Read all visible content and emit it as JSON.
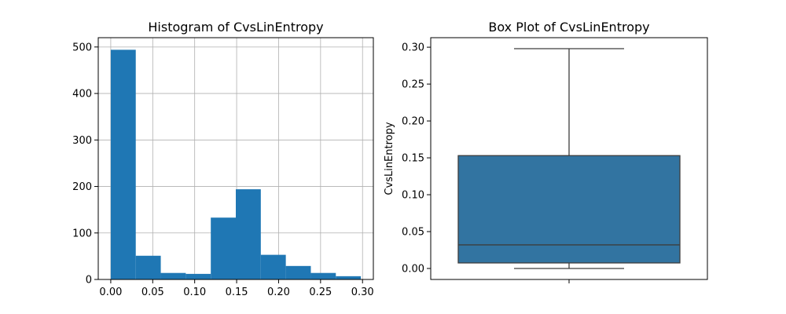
{
  "chart_data": [
    {
      "type": "histogram",
      "title": "Histogram of CvsLinEntropy",
      "xlabel": "",
      "ylabel": "",
      "grid": true,
      "xlim": [
        -0.0149,
        0.3129
      ],
      "ylim": [
        0,
        520
      ],
      "bins": [
        {
          "x0": 0.0,
          "x1": 0.0298,
          "count": 494
        },
        {
          "x0": 0.0298,
          "x1": 0.0596,
          "count": 51
        },
        {
          "x0": 0.0596,
          "x1": 0.0894,
          "count": 14
        },
        {
          "x0": 0.0894,
          "x1": 0.1192,
          "count": 12
        },
        {
          "x0": 0.1192,
          "x1": 0.149,
          "count": 133
        },
        {
          "x0": 0.149,
          "x1": 0.1788,
          "count": 194
        },
        {
          "x0": 0.1788,
          "x1": 0.2086,
          "count": 53
        },
        {
          "x0": 0.2086,
          "x1": 0.2384,
          "count": 29
        },
        {
          "x0": 0.2384,
          "x1": 0.2682,
          "count": 14
        },
        {
          "x0": 0.2682,
          "x1": 0.298,
          "count": 7
        }
      ],
      "x_ticks": [
        {
          "value": 0.0,
          "label": "0.00"
        },
        {
          "value": 0.05,
          "label": "0.05"
        },
        {
          "value": 0.1,
          "label": "0.10"
        },
        {
          "value": 0.15,
          "label": "0.15"
        },
        {
          "value": 0.2,
          "label": "0.20"
        },
        {
          "value": 0.25,
          "label": "0.25"
        },
        {
          "value": 0.3,
          "label": "0.30"
        }
      ],
      "y_ticks": [
        {
          "value": 0,
          "label": "0"
        },
        {
          "value": 100,
          "label": "100"
        },
        {
          "value": 200,
          "label": "200"
        },
        {
          "value": 300,
          "label": "300"
        },
        {
          "value": 400,
          "label": "400"
        },
        {
          "value": 500,
          "label": "500"
        }
      ],
      "color": "#1f77b4"
    },
    {
      "type": "box",
      "title": "Box Plot of CvsLinEntropy",
      "xlabel": "",
      "ylabel": "CvsLinEntropy",
      "grid": false,
      "ylim": [
        -0.0149,
        0.3129
      ],
      "stats": {
        "whisker_low": 0.0,
        "q1": 0.0075,
        "median": 0.032,
        "q3": 0.153,
        "whisker_high": 0.298
      },
      "y_ticks": [
        {
          "value": 0.0,
          "label": "0.00"
        },
        {
          "value": 0.05,
          "label": "0.05"
        },
        {
          "value": 0.1,
          "label": "0.10"
        },
        {
          "value": 0.15,
          "label": "0.15"
        },
        {
          "value": 0.2,
          "label": "0.20"
        },
        {
          "value": 0.25,
          "label": "0.25"
        },
        {
          "value": 0.3,
          "label": "0.30"
        }
      ],
      "color": "#3274a1"
    }
  ]
}
